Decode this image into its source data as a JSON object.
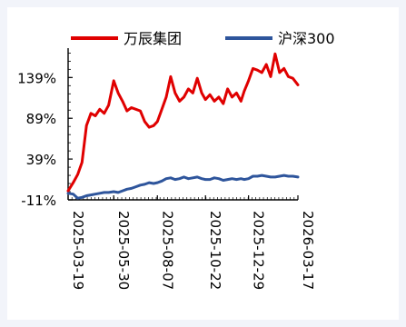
{
  "chart_data": {
    "type": "line",
    "title": "",
    "xlabel": "",
    "ylabel": "",
    "ylim": [
      -11,
      175
    ],
    "y_ticks": [
      "-11%",
      "39%",
      "89%",
      "139%"
    ],
    "y_tick_values": [
      -11,
      39,
      89,
      139
    ],
    "x_ticks": [
      "2025-03-19",
      "2025-05-30",
      "2025-08-07",
      "2025-10-22",
      "2025-12-29",
      "2026-03-17"
    ],
    "legend_position": "top",
    "grid": false,
    "x": [
      "2025-03-19",
      "2025-03-27",
      "2025-04-03",
      "2025-04-10",
      "2025-04-17",
      "2025-04-24",
      "2025-05-01",
      "2025-05-08",
      "2025-05-15",
      "2025-05-22",
      "2025-05-30",
      "2025-06-06",
      "2025-06-13",
      "2025-06-20",
      "2025-06-27",
      "2025-07-04",
      "2025-07-11",
      "2025-07-18",
      "2025-07-25",
      "2025-08-01",
      "2025-08-07",
      "2025-08-14",
      "2025-08-21",
      "2025-08-28",
      "2025-09-04",
      "2025-09-11",
      "2025-09-18",
      "2025-09-25",
      "2025-10-02",
      "2025-10-09",
      "2025-10-16",
      "2025-10-22",
      "2025-10-29",
      "2025-11-05",
      "2025-11-12",
      "2025-11-19",
      "2025-11-26",
      "2025-12-03",
      "2025-12-10",
      "2025-12-17",
      "2025-12-22",
      "2025-12-29",
      "2026-01-05",
      "2026-01-12",
      "2026-01-19",
      "2026-01-26",
      "2026-02-02",
      "2026-02-09",
      "2026-02-16",
      "2026-02-23",
      "2026-03-02",
      "2026-03-09",
      "2026-03-17"
    ],
    "series": [
      {
        "name": "万辰集团",
        "color": "#e00000",
        "values": [
          0,
          10,
          20,
          35,
          80,
          95,
          92,
          100,
          95,
          105,
          135,
          120,
          110,
          98,
          102,
          100,
          98,
          85,
          78,
          80,
          85,
          100,
          115,
          140,
          120,
          110,
          115,
          125,
          120,
          138,
          120,
          112,
          118,
          110,
          115,
          107,
          125,
          115,
          120,
          110,
          122,
          135,
          150,
          148,
          145,
          155,
          140,
          168,
          145,
          150,
          140,
          138,
          130
        ]
      },
      {
        "name": "沪深300",
        "color": "#2e559c",
        "values": [
          -3,
          -4,
          -9,
          -8,
          -6,
          -5,
          -4,
          -3,
          -2,
          -2,
          -1,
          -2,
          0,
          2,
          3,
          5,
          7,
          8,
          10,
          9,
          10,
          12,
          15,
          16,
          14,
          15,
          17,
          15,
          16,
          17,
          15,
          14,
          14,
          16,
          15,
          13,
          14,
          15,
          14,
          15,
          14,
          15,
          18,
          18,
          19,
          18,
          17,
          17,
          18,
          19,
          18,
          18,
          17
        ]
      }
    ]
  }
}
